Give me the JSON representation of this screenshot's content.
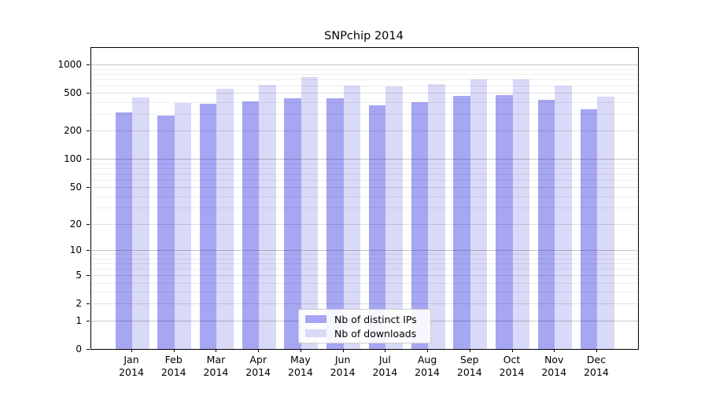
{
  "title": "SNPchip 2014",
  "legend": {
    "items": [
      {
        "label": "Nb of distinct IPs",
        "color": "#a6a6f3"
      },
      {
        "label": "Nb of downloads",
        "color": "#d9d9f8"
      }
    ]
  },
  "chart_data": {
    "type": "bar",
    "title": "SNPchip 2014",
    "categories": [
      "Jan",
      "Feb",
      "Mar",
      "Apr",
      "May",
      "Jun",
      "Jul",
      "Aug",
      "Sep",
      "Oct",
      "Nov",
      "Dec"
    ],
    "category_year": "2014",
    "series": [
      {
        "name": "Nb of distinct IPs",
        "color": "#a6a6f3",
        "values": [
          310,
          290,
          385,
          410,
          440,
          445,
          375,
          400,
          465,
          475,
          425,
          335
        ]
      },
      {
        "name": "Nb of downloads",
        "color": "#d9d9f8",
        "values": [
          450,
          390,
          560,
          610,
          735,
          600,
          585,
          620,
          695,
          700,
          600,
          455
        ]
      }
    ],
    "xlabel": "",
    "ylabel": "",
    "yscale": "log1p",
    "yticks": [
      0,
      1,
      2,
      5,
      10,
      20,
      50,
      100,
      200,
      500,
      1000
    ],
    "ylim": [
      0,
      1500
    ],
    "grid": true,
    "grid_on_top": true,
    "legend_position": "lower center",
    "plot_border": "black box",
    "background": "#ffffff"
  }
}
